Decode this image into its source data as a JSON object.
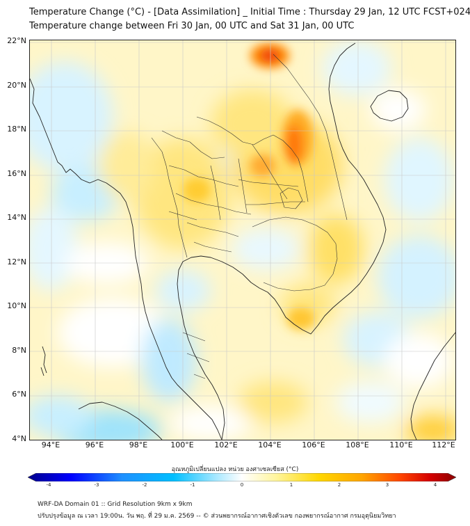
{
  "header": {
    "title": "Temperature Change (°C) - [Data Assimilation] _ Initial Time : Thursday 29 Jan, 12 UTC FCST+024",
    "subtitle": "Temperature change between Fri 30 Jan, 00 UTC and Sat 31 Jan, 00 UTC"
  },
  "map": {
    "lat_labels": [
      "22°N",
      "20°N",
      "18°N",
      "16°N",
      "14°N",
      "12°N",
      "10°N",
      "8°N",
      "6°N",
      "4°N"
    ],
    "lon_labels": [
      "94°E",
      "96°E",
      "98°E",
      "100°E",
      "102°E",
      "104°E",
      "106°E",
      "108°E",
      "110°E",
      "112°E"
    ],
    "lat_range": [
      4,
      22
    ],
    "lon_range": [
      93,
      112.4
    ],
    "gridlines": true
  },
  "colorbar": {
    "label": "อุณหภูมิเปลี่ยนแปลง หน่วย องศาเซลเซียส (°C)",
    "ticks": [
      "-4",
      "-3",
      "-2",
      "-1",
      "0",
      "1",
      "2",
      "3",
      "4"
    ],
    "range": [
      -4,
      4
    ],
    "colors": [
      "#00008b",
      "#0000ff",
      "#1e90ff",
      "#00bfff",
      "#7fdfff",
      "#ffffff",
      "#fff59d",
      "#ffd700",
      "#ffa500",
      "#ff4500",
      "#d40000",
      "#8b0000"
    ]
  },
  "footer": {
    "line1": "WRF-DA Domain 01 :: Grid Resolution 9km x 9km",
    "line2": "ปรับปรุงข้อมูล ณ เวลา 19:00น. วัน พฤ. ที่ 29 ม.ค. 2569 -- © ส่วนพยากรณ์อากาศเชิงตัวเลข กองพยากรณ์อากาศ กรมอุตุนิยมวิทยา"
  }
}
